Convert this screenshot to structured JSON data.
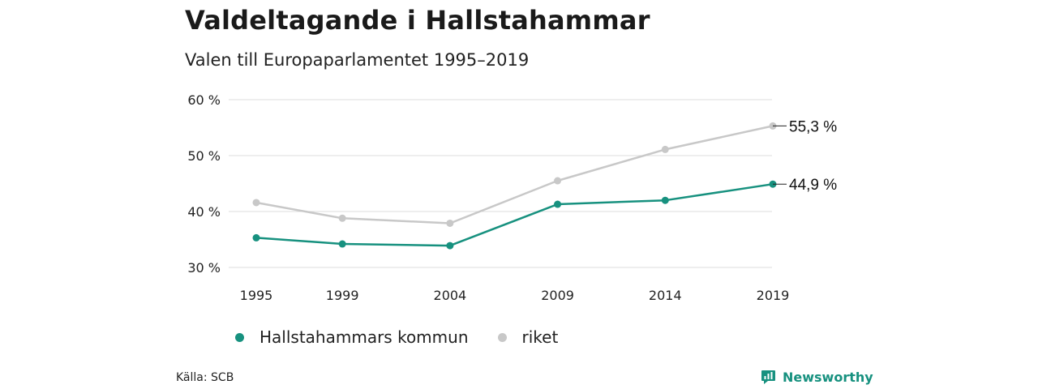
{
  "header": {
    "title": "Valdeltagande i Hallstahammar",
    "subtitle": "Valen till Europaparlamentet 1995–2019"
  },
  "colors": {
    "kommun": "#17917f",
    "riket": "#c8c8c8",
    "grid": "#dddddd",
    "brand": "#17917f"
  },
  "chart_data": {
    "type": "line",
    "title": "Valdeltagande i Hallstahammar",
    "subtitle": "Valen till Europaparlamentet 1995–2019",
    "categories": [
      "1995",
      "1999",
      "2004",
      "2009",
      "2014",
      "2019"
    ],
    "x": [
      1995,
      1999,
      2004,
      2009,
      2014,
      2019
    ],
    "ylim": [
      30,
      60
    ],
    "yticks": [
      30,
      40,
      50,
      60
    ],
    "ytick_labels": [
      "30 %",
      "40 %",
      "50 %",
      "60 %"
    ],
    "grid": "horizontal",
    "legend": "bottom-left",
    "series": [
      {
        "name": "Hallstahammars kommun",
        "color": "#17917f",
        "values": [
          35.3,
          34.2,
          33.9,
          41.3,
          42.0,
          44.9
        ],
        "end_label": "44,9 %"
      },
      {
        "name": "riket",
        "color": "#c8c8c8",
        "values": [
          41.6,
          38.8,
          37.9,
          45.5,
          51.1,
          55.3
        ],
        "end_label": "55,3 %"
      }
    ]
  },
  "legend": {
    "items": [
      "Hallstahammars kommun",
      "riket"
    ]
  },
  "footer": {
    "source": "Källa: SCB",
    "brand": "Newsworthy",
    "brand_icon": "newsworthy-logo-icon"
  }
}
